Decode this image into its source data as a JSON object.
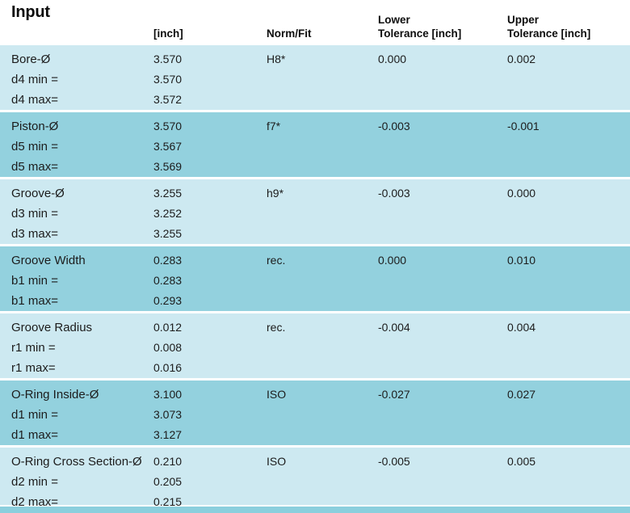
{
  "title": "Input",
  "columns": {
    "value_unit": "[inch]",
    "norm_fit": "Norm/Fit",
    "lower_line1": "Lower",
    "lower_line2": "Tolerance [inch]",
    "upper_line1": "Upper",
    "upper_line2": "Tolerance [inch]"
  },
  "colors": {
    "band_light": "#cde9f1",
    "band_dark": "#93d1de",
    "bottom_sliver": "#8bcfdd",
    "text": "#1c1c1c"
  },
  "rows": [
    {
      "name": "Bore-Ø",
      "min_label": "d4 min =",
      "max_label": "d4 max=",
      "value": "3.570",
      "min": "3.570",
      "max": "3.572",
      "norm": "H8*",
      "lower": "0.000",
      "upper": "0.002"
    },
    {
      "name": "Piston-Ø",
      "min_label": "d5 min =",
      "max_label": "d5 max=",
      "value": "3.570",
      "min": "3.567",
      "max": "3.569",
      "norm": "f7*",
      "lower": "-0.003",
      "upper": "-0.001"
    },
    {
      "name": "Groove-Ø",
      "min_label": "d3 min =",
      "max_label": "d3 max=",
      "value": "3.255",
      "min": "3.252",
      "max": "3.255",
      "norm": "h9*",
      "lower": "-0.003",
      "upper": "0.000"
    },
    {
      "name": "Groove Width",
      "min_label": "b1 min =",
      "max_label": "b1 max=",
      "value": "0.283",
      "min": "0.283",
      "max": "0.293",
      "norm": "rec.",
      "lower": "0.000",
      "upper": "0.010"
    },
    {
      "name": "Groove Radius",
      "min_label": "r1 min =",
      "max_label": "r1 max=",
      "value": "0.012",
      "min": "0.008",
      "max": "0.016",
      "norm": "rec.",
      "lower": "-0.004",
      "upper": "0.004"
    },
    {
      "name": "O-Ring Inside-Ø",
      "min_label": "d1 min =",
      "max_label": "d1 max=",
      "value": "3.100",
      "min": "3.073",
      "max": "3.127",
      "norm": "ISO",
      "lower": "-0.027",
      "upper": "0.027"
    },
    {
      "name": "O-Ring Cross Section-Ø",
      "min_label": "d2 min =",
      "max_label": "d2 max=",
      "value": "0.210",
      "min": "0.205",
      "max": "0.215",
      "norm": "ISO",
      "lower": "-0.005",
      "upper": "0.005"
    }
  ]
}
